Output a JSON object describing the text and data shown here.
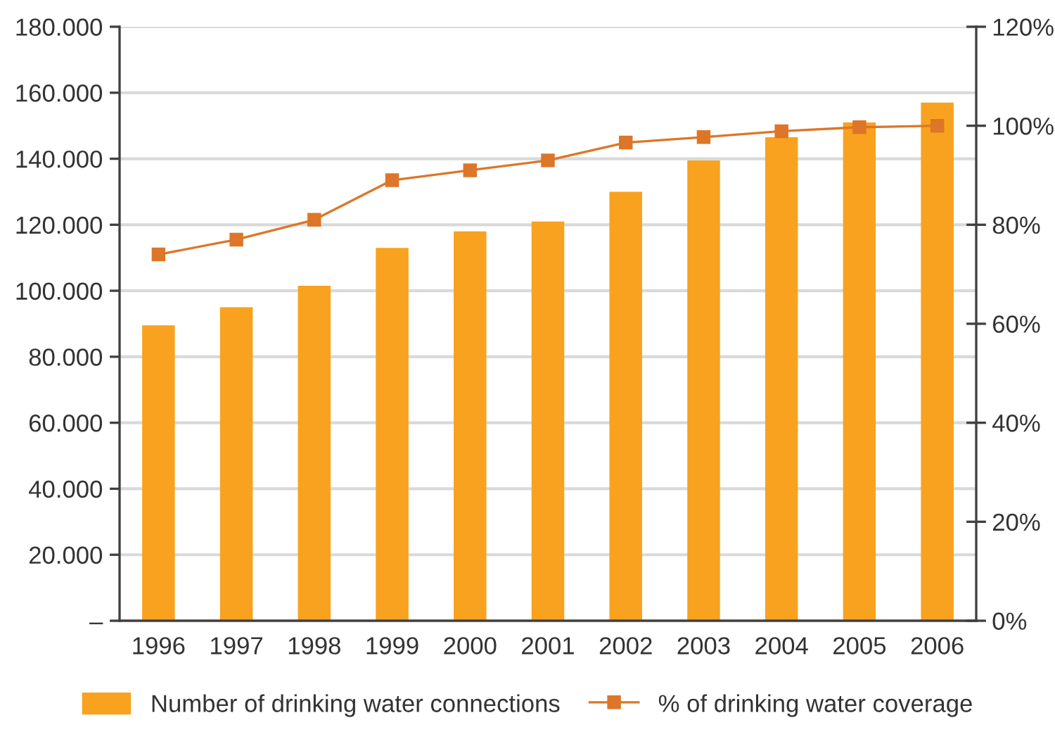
{
  "chart_data": {
    "type": "bar",
    "categories": [
      "1996",
      "1997",
      "1998",
      "1999",
      "2000",
      "2001",
      "2002",
      "2003",
      "2004",
      "2005",
      "2006"
    ],
    "series": [
      {
        "name": "Number of drinking water connections",
        "color": "#f8a21f",
        "values": [
          89500,
          95000,
          101500,
          113000,
          118000,
          121000,
          130000,
          139500,
          146500,
          151000,
          157000
        ]
      },
      {
        "name": "% of drinking water coverage",
        "type": "line",
        "axis": "y2",
        "color": "#dd7628",
        "values": [
          74,
          77,
          81,
          89,
          91,
          93,
          96.6,
          97.7,
          98.9,
          99.7,
          100
        ]
      }
    ],
    "ylim": [
      0,
      180000
    ],
    "yticks": [
      {
        "value": 0,
        "label": "–"
      },
      {
        "value": 20000,
        "label": "20.000"
      },
      {
        "value": 40000,
        "label": "40.000"
      },
      {
        "value": 60000,
        "label": "60.000"
      },
      {
        "value": 80000,
        "label": "80.000"
      },
      {
        "value": 100000,
        "label": "100.000"
      },
      {
        "value": 120000,
        "label": "120.000"
      },
      {
        "value": 140000,
        "label": "140.000"
      },
      {
        "value": 160000,
        "label": "160.000"
      },
      {
        "value": 180000,
        "label": "180.000"
      }
    ],
    "y2lim": [
      0,
      120
    ],
    "y2ticks": [
      {
        "value": 0,
        "label": "0%"
      },
      {
        "value": 20,
        "label": "20%"
      },
      {
        "value": 40,
        "label": "40%"
      },
      {
        "value": 60,
        "label": "60%"
      },
      {
        "value": 80,
        "label": "80%"
      },
      {
        "value": 100,
        "label": "100%"
      },
      {
        "value": 120,
        "label": "120%"
      }
    ],
    "grid": "y",
    "legend": "bottom",
    "marker": "square"
  }
}
